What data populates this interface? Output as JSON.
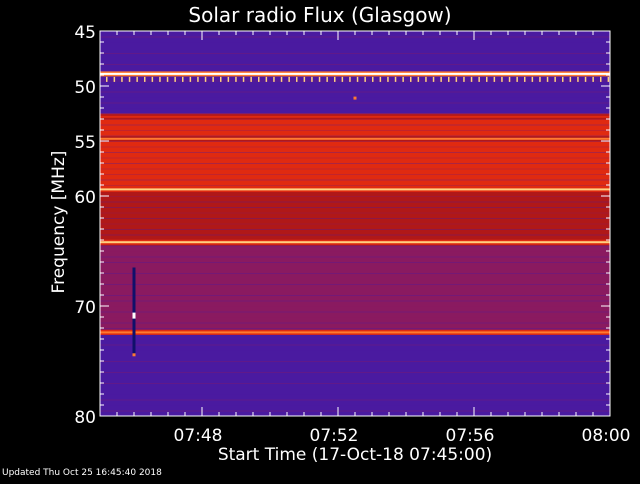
{
  "chart_data": {
    "type": "heatmap",
    "title": "Solar radio Flux (Glasgow)",
    "xlabel": "Start Time (17-Oct-18 07:45:00)",
    "ylabel": "Frequency [MHz]",
    "x_unit": "time (HH:MM)",
    "xlim": [
      "07:45",
      "08:00"
    ],
    "x_ticks": [
      "07:48",
      "07:52",
      "07:56",
      "08:00"
    ],
    "ylim": [
      45,
      80
    ],
    "y_inverted": true,
    "y_ticks": [
      45,
      50,
      55,
      60,
      70,
      80
    ],
    "colormap": [
      "#2a0a8c",
      "#4a1aa0",
      "#8a1a60",
      "#b01818",
      "#e02a10",
      "#ff7a30",
      "#ffd080",
      "#ffffff"
    ],
    "background_band": [
      {
        "from": 45,
        "to": 52.5,
        "level": 0.18
      },
      {
        "from": 52.5,
        "to": 59.5,
        "level": 0.55
      },
      {
        "from": 59.5,
        "to": 64.5,
        "level": 0.42
      },
      {
        "from": 64.5,
        "to": 72.5,
        "level": 0.3
      },
      {
        "from": 72.5,
        "to": 80,
        "level": 0.2
      }
    ],
    "hot_lines_mhz": [
      {
        "freq": 48.9,
        "level": 1.0
      },
      {
        "freq": 52.8,
        "level": 0.62
      },
      {
        "freq": 54.8,
        "level": 0.72
      },
      {
        "freq": 59.4,
        "level": 0.85
      },
      {
        "freq": 64.2,
        "level": 0.8
      },
      {
        "freq": 72.4,
        "level": 0.78
      }
    ],
    "burst": {
      "time": "07:46:00",
      "from_mhz": 66.5,
      "to_mhz": 74.5
    },
    "spot": {
      "time": "07:52:30",
      "freq_mhz": 51.1
    }
  },
  "footer": "Updated Thu Oct 25 16:45:40 2018"
}
